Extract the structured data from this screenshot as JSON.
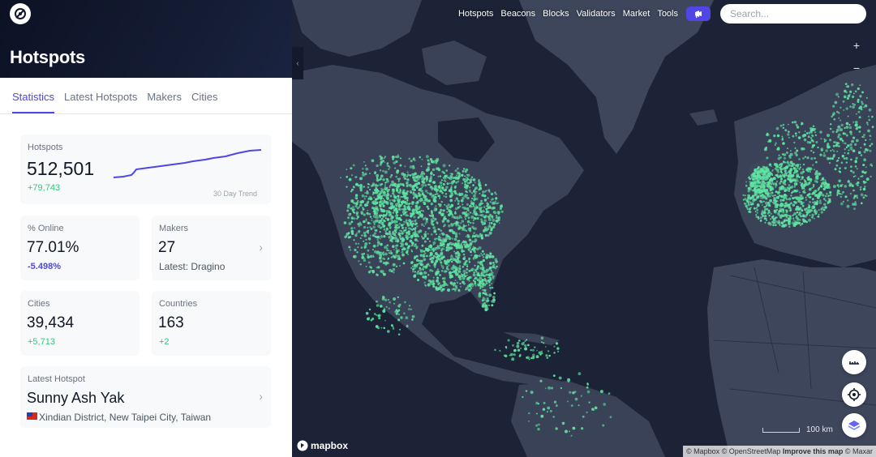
{
  "nav": {
    "links": [
      "Hotspots",
      "Beacons",
      "Blocks",
      "Validators",
      "Market",
      "Tools"
    ],
    "badge_icon": "megaphone-icon",
    "search_placeholder": "Search..."
  },
  "panel": {
    "title": "Hotspots",
    "tabs": [
      "Statistics",
      "Latest Hotspots",
      "Makers",
      "Cities"
    ],
    "active_tab": "Statistics"
  },
  "stats": {
    "hotspots": {
      "label": "Hotspots",
      "value": "512,501",
      "change": "+79,743",
      "trend_label": "30 Day Trend"
    },
    "online": {
      "label": "% Online",
      "value": "77.01%",
      "change": "-5.498%"
    },
    "makers": {
      "label": "Makers",
      "value": "27",
      "sub": "Latest: Dragino"
    },
    "cities": {
      "label": "Cities",
      "value": "39,434",
      "change": "+5,713"
    },
    "countries": {
      "label": "Countries",
      "value": "163",
      "change": "+2"
    },
    "latest": {
      "label": "Latest Hotspot",
      "name": "Sunny Ash Yak",
      "location": "Xindian District, New Taipei City, Taiwan",
      "flag": "taiwan-flag-icon"
    }
  },
  "map": {
    "zoom_in": "+",
    "zoom_out": "−",
    "scale": "100 km",
    "brand": "mapbox",
    "attribution": [
      "© Mapbox",
      "© OpenStreetMap",
      "Improve this map",
      "© Maxar"
    ]
  },
  "colors": {
    "accent": "#4f46e5",
    "positive": "#34c37e",
    "hotspot": "#5fe3a1",
    "land": "#3a4257",
    "water": "#1c2336"
  }
}
